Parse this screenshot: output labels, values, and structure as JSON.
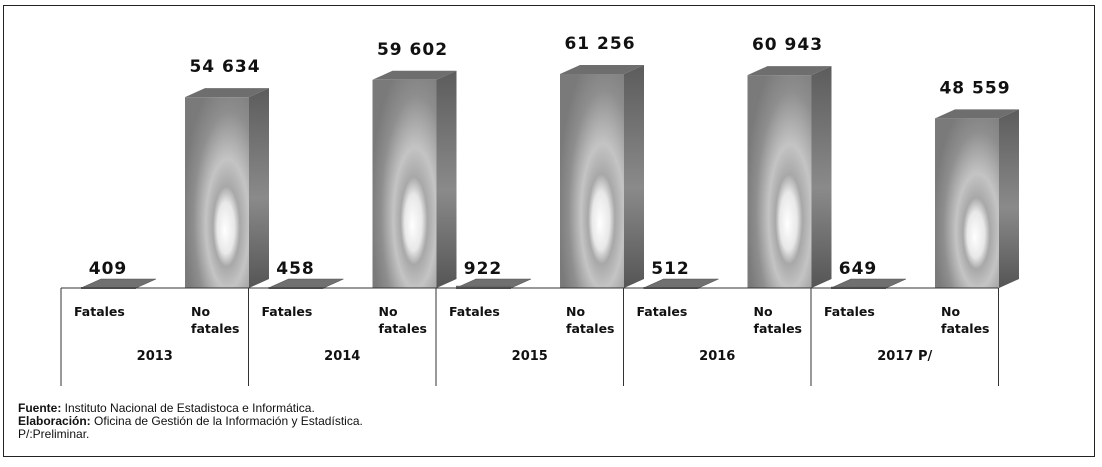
{
  "chart_data": {
    "type": "bar",
    "categories": [
      "2013",
      "2014",
      "2015",
      "2016",
      "2017 P/"
    ],
    "subcategories": [
      "Fatales",
      "No\nfatales"
    ],
    "series": [
      {
        "values": [
          409,
          458,
          922,
          512,
          649
        ]
      },
      {
        "values": [
          54634,
          59602,
          61256,
          60943,
          48559
        ]
      }
    ],
    "value_labels": {
      "fatales": [
        "409",
        "458",
        "922",
        "512",
        "649"
      ],
      "no_fatales": [
        "54 634",
        "59 602",
        "61 256",
        "60 943",
        "48 559"
      ]
    },
    "ylim": [
      0,
      75000
    ],
    "three_d": true,
    "grid": false,
    "colors": {
      "bar_front": "#8a8a8a",
      "bar_side": "#5a5a5a",
      "bar_top": "#6e6e6e",
      "highlight": "#ffffff"
    }
  },
  "footer": {
    "source_label": "Fuente:",
    "source_text": " Instituto Nacional de Estadistoca e Informática.",
    "elab_label": "Elaboración:",
    "elab_text": " Oficina de Gestión de la Información y Estadística.",
    "note": "P/:Preliminar."
  }
}
